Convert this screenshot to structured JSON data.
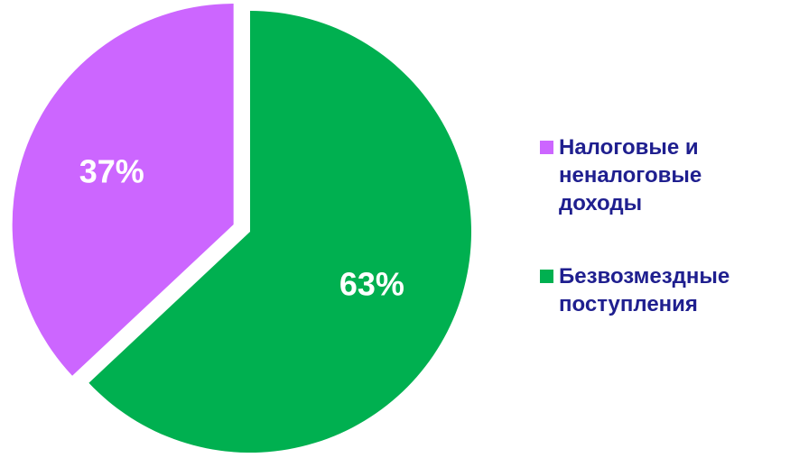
{
  "chart_data": {
    "type": "pie",
    "title": "",
    "slices": [
      {
        "label": "Налоговые и неналоговые доходы",
        "legend_lines": [
          "Налоговые и",
          "неналоговые",
          "доходы"
        ],
        "value": 37,
        "display": "37%",
        "color": "#cc66ff",
        "exploded": true
      },
      {
        "label": "Безвозмездные поступления",
        "legend_lines": [
          "Безвозмездные",
          "поступления"
        ],
        "value": 63,
        "display": "63%",
        "color": "#00b050",
        "exploded": false
      }
    ],
    "start_angle": "12 o'clock",
    "direction": "clockwise",
    "legend_position": "right",
    "legend_text_color": "#1f1f8f"
  }
}
